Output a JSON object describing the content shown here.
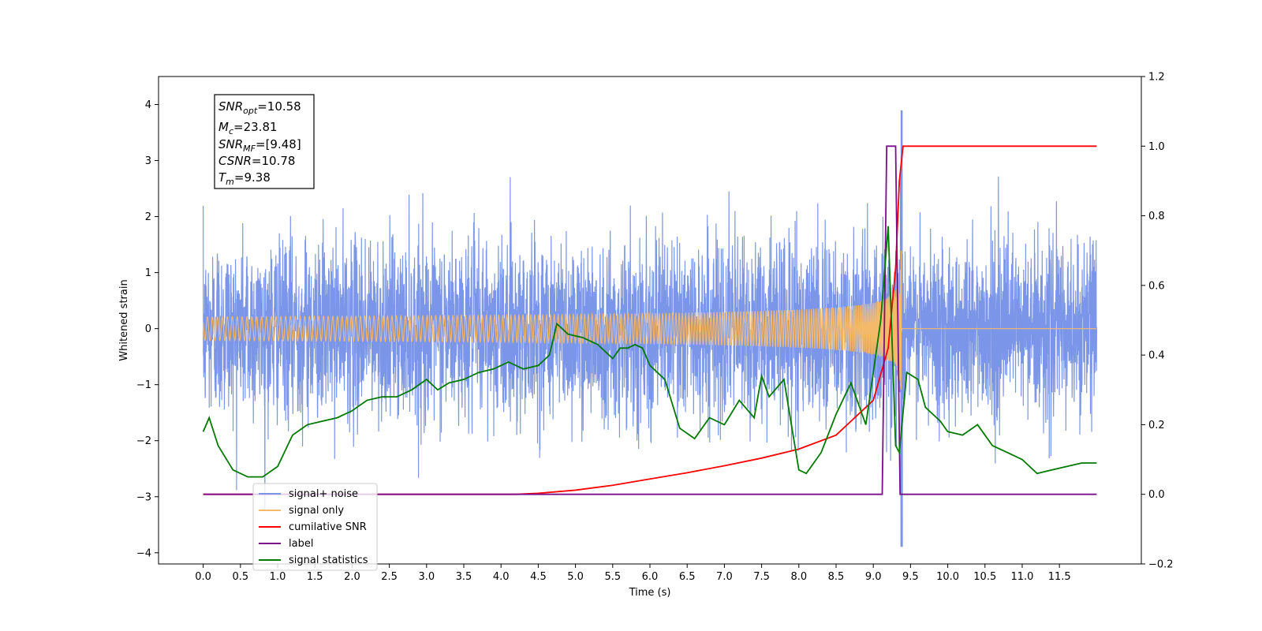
{
  "chart_data": {
    "type": "line",
    "xlabel": "Time (s)",
    "ylabel": "Whitened strain",
    "xlim": [
      -0.6,
      12.6
    ],
    "ylim": [
      -4.2,
      4.5
    ],
    "y2lim": [
      -0.2,
      1.2
    ],
    "xticks": [
      "0.0",
      "0.5",
      "1.0",
      "1.5",
      "2.0",
      "2.5",
      "3.0",
      "3.5",
      "4.0",
      "4.5",
      "5.0",
      "5.5",
      "6.0",
      "6.5",
      "7.0",
      "7.5",
      "8.0",
      "8.5",
      "9.0",
      "9.5",
      "10.0",
      "10.5",
      "11.0",
      "11.5"
    ],
    "yticks": [
      "4",
      "3",
      "2",
      "1",
      "0",
      "−1",
      "−2",
      "−3",
      "−4"
    ],
    "y2ticks": [
      "1.2",
      "1.0",
      "0.8",
      "0.6",
      "0.4",
      "0.2",
      "0.0",
      "−0.2"
    ],
    "stats_box": {
      "snr_opt": {
        "name": "SNR",
        "sub": "opt",
        "value": "=10.58"
      },
      "mc": {
        "name": "M",
        "sub": "c",
        "value": "=23.81"
      },
      "snr_mf": {
        "name": "SNR",
        "sub": "MF",
        "value": "=[9.48]"
      },
      "csnr": {
        "name": "CSNR",
        "value": "=10.78"
      },
      "tm": {
        "name": "T",
        "sub": "m",
        "value": "=9.38"
      }
    },
    "legend_placement": "lower-left",
    "series": [
      {
        "name": "signal+ noise",
        "color": "#7b96e8",
        "axis": "left",
        "duration": 12.0,
        "noise_sigma": 0.75,
        "approx_peak": 4.1
      },
      {
        "name": "signal only",
        "color": "#f5b96a",
        "axis": "left",
        "merger_time": 9.38,
        "peak_amplitude": 1.5
      },
      {
        "name": "cumilative SNR",
        "color": "#ff0000",
        "axis": "right",
        "x": [
          0.0,
          4.2,
          4.5,
          5.0,
          5.5,
          6.0,
          6.5,
          7.0,
          7.5,
          8.0,
          8.5,
          9.0,
          9.2,
          9.3,
          9.35,
          9.4,
          12.0
        ],
        "y": [
          0.0,
          0.0,
          0.003,
          0.012,
          0.026,
          0.044,
          0.062,
          0.082,
          0.104,
          0.13,
          0.17,
          0.27,
          0.42,
          0.65,
          0.9,
          1.0,
          1.0
        ]
      },
      {
        "name": "label",
        "color": "#7b0f8a",
        "axis": "right",
        "x": [
          0.0,
          9.12,
          9.18,
          9.3,
          9.36,
          12.0
        ],
        "y": [
          0.0,
          0.0,
          1.0,
          1.0,
          0.0,
          0.0
        ]
      },
      {
        "name": "signal statistics",
        "color": "#007a00",
        "axis": "right",
        "x": [
          0.0,
          0.08,
          0.2,
          0.4,
          0.6,
          0.8,
          1.0,
          1.2,
          1.4,
          1.6,
          1.8,
          2.0,
          2.2,
          2.4,
          2.6,
          2.8,
          3.0,
          3.15,
          3.3,
          3.5,
          3.7,
          3.9,
          4.1,
          4.3,
          4.5,
          4.65,
          4.75,
          4.9,
          5.1,
          5.3,
          5.5,
          5.6,
          5.7,
          5.8,
          5.9,
          6.0,
          6.2,
          6.4,
          6.6,
          6.8,
          7.0,
          7.2,
          7.4,
          7.5,
          7.6,
          7.8,
          8.0,
          8.1,
          8.3,
          8.5,
          8.7,
          8.9,
          9.0,
          9.1,
          9.2,
          9.3,
          9.35,
          9.45,
          9.6,
          9.7,
          9.9,
          10.0,
          10.2,
          10.4,
          10.6,
          10.8,
          11.0,
          11.2,
          11.4,
          11.6,
          11.8,
          12.0
        ],
        "y": [
          0.18,
          0.22,
          0.14,
          0.07,
          0.05,
          0.05,
          0.08,
          0.17,
          0.2,
          0.21,
          0.22,
          0.24,
          0.27,
          0.28,
          0.28,
          0.3,
          0.33,
          0.3,
          0.32,
          0.33,
          0.35,
          0.36,
          0.38,
          0.36,
          0.37,
          0.4,
          0.49,
          0.46,
          0.45,
          0.43,
          0.39,
          0.42,
          0.42,
          0.43,
          0.42,
          0.37,
          0.33,
          0.19,
          0.16,
          0.22,
          0.2,
          0.27,
          0.22,
          0.34,
          0.28,
          0.33,
          0.07,
          0.06,
          0.12,
          0.23,
          0.32,
          0.2,
          0.35,
          0.5,
          0.77,
          0.14,
          0.12,
          0.35,
          0.33,
          0.25,
          0.21,
          0.18,
          0.17,
          0.2,
          0.14,
          0.12,
          0.1,
          0.06,
          0.07,
          0.08,
          0.09,
          0.09
        ]
      }
    ]
  }
}
